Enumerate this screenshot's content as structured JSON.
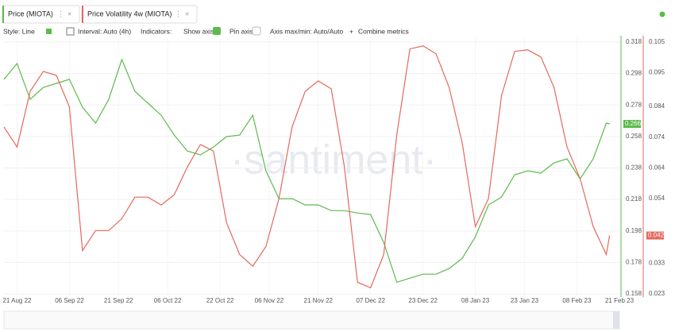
{
  "tabs": [
    "Price (MIOTA)",
    "Price Volatility 4w (MIOTA)"
  ],
  "toolbar": {
    "style": "Style: Line",
    "interval": "Interval: Auto (4h)",
    "indicators": "Indicators:",
    "show_axis": "Show axis",
    "pin_axis": "Pin axis",
    "axis_minmax": "Axis max/min: Auto/Auto",
    "combine": "Combine metrics"
  },
  "chart_data": {
    "type": "line",
    "watermark": "·santiment·",
    "x": [
      "2022-08-17",
      "2022-08-21",
      "2022-08-25",
      "2022-08-29",
      "2022-09-02",
      "2022-09-06",
      "2022-09-10",
      "2022-09-14",
      "2022-09-18",
      "2022-09-22",
      "2022-09-26",
      "2022-09-30",
      "2022-10-04",
      "2022-10-08",
      "2022-10-12",
      "2022-10-16",
      "2022-10-20",
      "2022-10-24",
      "2022-10-28",
      "2022-11-01",
      "2022-11-05",
      "2022-11-09",
      "2022-11-13",
      "2022-11-17",
      "2022-11-21",
      "2022-11-25",
      "2022-11-29",
      "2022-12-03",
      "2022-12-07",
      "2022-12-11",
      "2022-12-15",
      "2022-12-19",
      "2022-12-23",
      "2022-12-27",
      "2022-12-31",
      "2023-01-04",
      "2023-01-08",
      "2023-01-12",
      "2023-01-16",
      "2023-01-20",
      "2023-01-24",
      "2023-01-28",
      "2023-02-01",
      "2023-02-05",
      "2023-02-09",
      "2023-02-13",
      "2023-02-17",
      "2023-02-18"
    ],
    "xlim": [
      "2022-08-17",
      "2023-02-21"
    ],
    "xticks": [
      {
        "value": "2022-08-21",
        "label": "21 Aug 22"
      },
      {
        "value": "2022-09-06",
        "label": "06 Sep 22"
      },
      {
        "value": "2022-09-21",
        "label": "21 Sep 22"
      },
      {
        "value": "2022-10-06",
        "label": "06 Oct 22"
      },
      {
        "value": "2022-10-22",
        "label": "22 Oct 22"
      },
      {
        "value": "2022-11-06",
        "label": "06 Nov 22"
      },
      {
        "value": "2022-11-21",
        "label": "21 Nov 22"
      },
      {
        "value": "2022-12-07",
        "label": "07 Dec 22"
      },
      {
        "value": "2022-12-23",
        "label": "23 Dec 22"
      },
      {
        "value": "2023-01-08",
        "label": "08 Jan 23"
      },
      {
        "value": "2023-01-23",
        "label": "23 Jan 23"
      },
      {
        "value": "2023-02-08",
        "label": "08 Feb 23"
      },
      {
        "value": "2023-02-21",
        "label": "21 Feb 23"
      }
    ],
    "ylim": [
      0.157,
      0.322
    ],
    "yticks": [
      0.158,
      0.178,
      0.198,
      0.218,
      0.238,
      0.258,
      0.278,
      0.298,
      0.318
    ],
    "y2lim": [
      0.0225,
      0.107
    ],
    "y2ticks": [
      0.023,
      0.033,
      0.054,
      0.064,
      0.074,
      0.084,
      0.095,
      0.105
    ],
    "grid": true,
    "series": [
      {
        "name": "Price (MIOTA)",
        "color": "#5cbb4c",
        "current": 0.266,
        "values": [
          0.2943,
          0.3044,
          0.2816,
          0.2892,
          0.2917,
          0.2943,
          0.2766,
          0.2665,
          0.2816,
          0.3069,
          0.2867,
          0.2791,
          0.2715,
          0.2589,
          0.2488,
          0.2463,
          0.2513,
          0.2579,
          0.2589,
          0.2715,
          0.2362,
          0.2185,
          0.2185,
          0.2145,
          0.2145,
          0.2109,
          0.2109,
          0.2094,
          0.2084,
          0.1907,
          0.1654,
          0.168,
          0.1705,
          0.1705,
          0.1741,
          0.1806,
          0.1943,
          0.2145,
          0.2195,
          0.2337,
          0.2362,
          0.2347,
          0.2412,
          0.2438,
          0.2311,
          0.2438,
          0.2665,
          0.266
        ]
      },
      {
        "name": "Price Volatility 4w (MIOTA)",
        "color": "#e5685d",
        "axis": "y2",
        "current": 0.042,
        "values": [
          0.0773,
          0.0708,
          0.0889,
          0.0954,
          0.0941,
          0.0838,
          0.0371,
          0.0436,
          0.0436,
          0.0475,
          0.0545,
          0.0545,
          0.0519,
          0.0553,
          0.0643,
          0.0716,
          0.0695,
          0.0462,
          0.0358,
          0.032,
          0.0384,
          0.054,
          0.0773,
          0.0889,
          0.0923,
          0.0897,
          0.0643,
          0.0268,
          0.025,
          0.0358,
          0.0749,
          0.1027,
          0.1037,
          0.1011,
          0.0902,
          0.0721,
          0.0449,
          0.054,
          0.0876,
          0.1019,
          0.1024,
          0.1001,
          0.0902,
          0.0708,
          0.0605,
          0.0449,
          0.0358,
          0.042
        ]
      }
    ]
  }
}
